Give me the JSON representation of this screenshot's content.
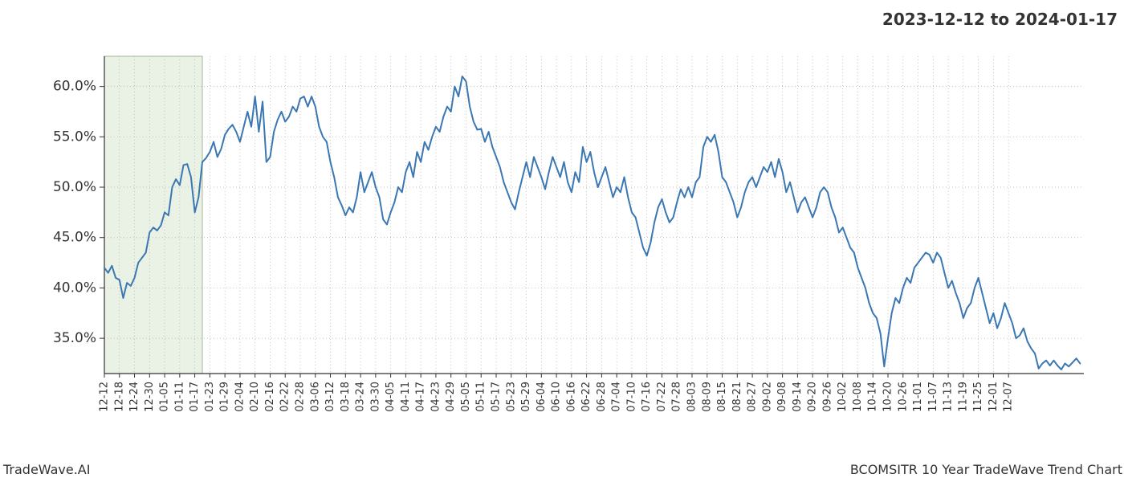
{
  "header_title": "2023-12-12 to 2024-01-17",
  "footer_left": "TradeWave.AI",
  "footer_right": "BCOMSITR 10 Year TradeWave Trend Chart",
  "chart": {
    "type": "line",
    "xlim_index": [
      0,
      260
    ],
    "ylim": [
      31.5,
      63.0
    ],
    "y_ticks": [
      35.0,
      40.0,
      45.0,
      50.0,
      55.0,
      60.0
    ],
    "y_tick_labels": [
      "35.0%",
      "40.0%",
      "45.0%",
      "50.0%",
      "55.0%",
      "60.0%"
    ],
    "x_tick_step": 4,
    "x_labels_every4": [
      "12-12",
      "12-18",
      "12-24",
      "12-30",
      "01-05",
      "01-11",
      "01-17",
      "01-23",
      "01-29",
      "02-04",
      "02-10",
      "02-16",
      "02-22",
      "02-28",
      "03-06",
      "03-12",
      "03-18",
      "03-24",
      "03-30",
      "04-05",
      "04-11",
      "04-17",
      "04-23",
      "04-29",
      "05-05",
      "05-11",
      "05-17",
      "05-23",
      "05-29",
      "06-04",
      "06-10",
      "06-16",
      "06-22",
      "06-28",
      "07-04",
      "07-10",
      "07-16",
      "07-22",
      "07-28",
      "08-03",
      "08-09",
      "08-15",
      "08-21",
      "08-27",
      "09-02",
      "09-08",
      "09-14",
      "09-20",
      "09-26",
      "10-02",
      "10-08",
      "10-14",
      "10-20",
      "10-26",
      "11-01",
      "11-07",
      "11-13",
      "11-19",
      "11-25",
      "12-01",
      "12-07"
    ],
    "line_color": "#3a77b3",
    "line_width": 2.0,
    "grid_color": "#b0b0b0",
    "grid_dash": "1 3",
    "background_color": "#ffffff",
    "axis_color": "#333333",
    "highlight_band": {
      "start_index": 0,
      "end_index": 26,
      "fill": "#d8e6cf",
      "opacity": 0.55,
      "border": "#8fa97e"
    },
    "values": [
      42.0,
      41.5,
      42.2,
      41.0,
      40.8,
      39.0,
      40.5,
      40.2,
      41.0,
      42.5,
      43.0,
      43.5,
      45.5,
      46.0,
      45.7,
      46.2,
      47.5,
      47.2,
      50.0,
      50.8,
      50.2,
      52.2,
      52.3,
      51.0,
      47.5,
      49.0,
      52.5,
      52.9,
      53.5,
      54.5,
      53.0,
      53.8,
      55.2,
      55.8,
      56.2,
      55.5,
      54.5,
      56.0,
      57.5,
      56.0,
      59.0,
      55.5,
      58.5,
      52.5,
      53.0,
      55.5,
      56.7,
      57.5,
      56.5,
      57.0,
      58.0,
      57.5,
      58.8,
      59.0,
      58.0,
      59.0,
      58.0,
      56.0,
      55.0,
      54.5,
      52.5,
      51.0,
      49.0,
      48.2,
      47.2,
      48.0,
      47.5,
      49.0,
      51.5,
      49.5,
      50.5,
      51.5,
      50.0,
      49.0,
      46.8,
      46.3,
      47.5,
      48.5,
      50.0,
      49.5,
      51.5,
      52.5,
      51.0,
      53.5,
      52.5,
      54.5,
      53.7,
      55.0,
      56.0,
      55.5,
      57.0,
      58.0,
      57.5,
      60.0,
      59.0,
      61.0,
      60.5,
      58.0,
      56.5,
      55.7,
      55.8,
      54.5,
      55.5,
      54.0,
      53.0,
      52.0,
      50.5,
      49.5,
      48.5,
      47.8,
      49.5,
      51.0,
      52.5,
      51.0,
      53.0,
      52.0,
      51.0,
      49.8,
      51.5,
      53.0,
      52.0,
      51.0,
      52.5,
      50.5,
      49.5,
      51.5,
      50.5,
      54.0,
      52.5,
      53.5,
      51.5,
      50.0,
      51.0,
      52.0,
      50.5,
      49.0,
      50.0,
      49.5,
      51.0,
      49.0,
      47.5,
      47.0,
      45.5,
      44.0,
      43.2,
      44.5,
      46.5,
      48.0,
      48.8,
      47.5,
      46.5,
      47.0,
      48.5,
      49.8,
      49.0,
      50.0,
      49.0,
      50.5,
      51.0,
      54.0,
      55.0,
      54.5,
      55.2,
      53.5,
      51.0,
      50.5,
      49.5,
      48.5,
      47.0,
      48.0,
      49.5,
      50.5,
      51.0,
      50.0,
      51.0,
      52.0,
      51.5,
      52.5,
      51.0,
      52.8,
      51.5,
      49.5,
      50.5,
      49.0,
      47.5,
      48.5,
      49.0,
      48.0,
      47.0,
      48.0,
      49.5,
      50.0,
      49.5,
      48.0,
      47.0,
      45.5,
      46.0,
      45.0,
      44.0,
      43.5,
      42.0,
      41.0,
      40.0,
      38.5,
      37.5,
      37.0,
      35.5,
      32.2,
      35.0,
      37.5,
      39.0,
      38.5,
      40.0,
      41.0,
      40.5,
      42.0,
      42.5,
      43.0,
      43.5,
      43.3,
      42.5,
      43.5,
      43.0,
      41.5,
      40.0,
      40.7,
      39.5,
      38.5,
      37.0,
      38.0,
      38.5,
      40.0,
      41.0,
      39.5,
      38.0,
      36.5,
      37.5,
      36.0,
      37.0,
      38.5,
      37.5,
      36.5,
      35.0,
      35.3,
      36.0,
      34.7,
      34.0,
      33.5,
      32.0,
      32.5,
      32.8,
      32.3,
      32.8,
      32.3,
      31.9,
      32.5,
      32.2,
      32.6,
      33.0,
      32.5
    ]
  }
}
